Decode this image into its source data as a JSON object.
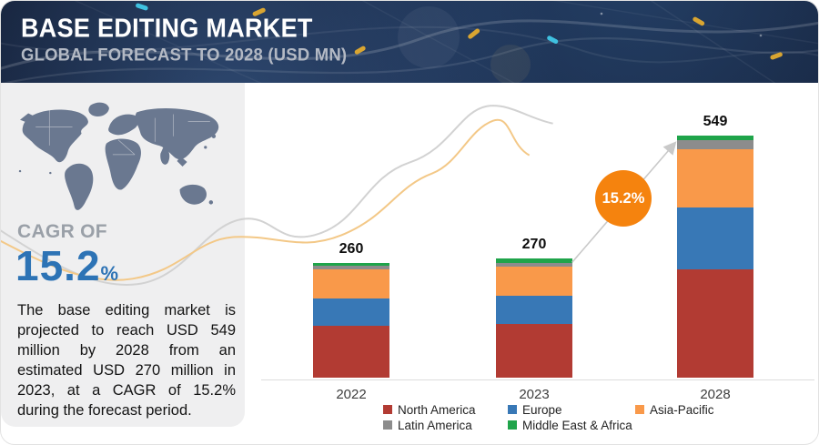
{
  "header": {
    "title": "BASE EDITING MARKET",
    "subtitle": "GLOBAL FORECAST TO 2028 (USD MN)"
  },
  "sidebar": {
    "cagr_label": "CAGR OF",
    "cagr_value": "15.2",
    "cagr_unit": "%",
    "description": "The base editing market is projected to reach USD 549 million by 2028 from an estimated USD 270 million in 2023, at a CAGR of 15.2% during the forecast period."
  },
  "annotation": {
    "growth_badge": "15.2%"
  },
  "theme": {
    "header_navy": "#16233d",
    "panel_gray": "#efeff0",
    "accent_blue": "#2d73b5",
    "badge_orange": "#f5830e",
    "map_color": "#6a7890",
    "arrow_gray": "#c9c9c9"
  },
  "chart_data": {
    "type": "bar",
    "stacked": true,
    "title": "BASE EDITING MARKET",
    "subtitle": "GLOBAL FORECAST TO 2028 (USD MN)",
    "unit": "USD MN",
    "categories": [
      "2022",
      "2023",
      "2028"
    ],
    "totals": [
      260,
      270,
      549
    ],
    "series": [
      {
        "name": "North America",
        "color": "#b23b33",
        "values": [
          118,
          121,
          245
        ]
      },
      {
        "name": "Europe",
        "color": "#3878b6",
        "values": [
          61,
          65,
          141
        ]
      },
      {
        "name": "Asia-Pacific",
        "color": "#f9994a",
        "values": [
          66,
          65,
          132
        ]
      },
      {
        "name": "Latin America",
        "color": "#8c8c8c",
        "values": [
          8,
          8,
          20
        ]
      },
      {
        "name": "Middle East & Africa",
        "color": "#1fa44a",
        "values": [
          7,
          11,
          11
        ]
      }
    ],
    "legend_position": "bottom",
    "annotations": [
      "15.2% CAGR arrow from 2023 to 2028"
    ],
    "gridlines": false
  }
}
